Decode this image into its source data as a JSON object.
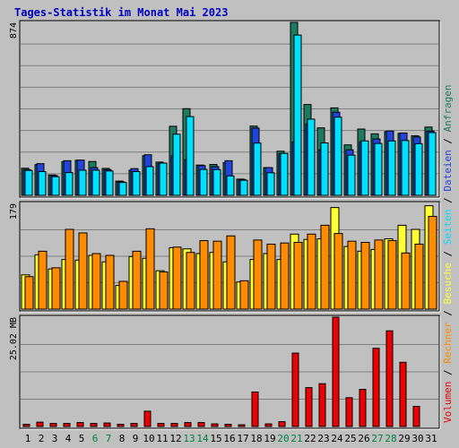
{
  "page": {
    "title": "Tages-Statistik im Monat Mai 2023"
  },
  "colors": {
    "background": "#c0c0c0",
    "title": "#0000c0",
    "anfragen": "#1e7a5e",
    "dateien": "#2244dd",
    "seiten": "#00e0ff",
    "besuche": "#ffff33",
    "rechner": "#ff8c00",
    "volumen": "#ee0000",
    "weekend_day_label": "#008040",
    "weekday_label": "#000000"
  },
  "chart_data": [
    {
      "type": "bar",
      "panel": "top",
      "y_axis_label": "874",
      "ylim": [
        0,
        874
      ],
      "grid": true,
      "categories": [
        "1",
        "2",
        "3",
        "4",
        "5",
        "6",
        "7",
        "8",
        "9",
        "10",
        "11",
        "12",
        "13",
        "14",
        "15",
        "16",
        "17",
        "18",
        "19",
        "20",
        "21",
        "22",
        "23",
        "24",
        "25",
        "26",
        "27",
        "28",
        "29",
        "30",
        "31"
      ],
      "series": [
        {
          "name": "Anfragen",
          "color": "#1e7a5e",
          "values": [
            137,
            155,
            103,
            170,
            177,
            171,
            136,
            72,
            127,
            200,
            168,
            349,
            438,
            153,
            156,
            165,
            82,
            350,
            140,
            223,
            874,
            459,
            341,
            442,
            255,
            335,
            311,
            322,
            313,
            301,
            345
          ]
        },
        {
          "name": "Dateien",
          "color": "#2244dd",
          "values": [
            130,
            160,
            100,
            175,
            178,
            140,
            130,
            68,
            135,
            205,
            160,
            200,
            180,
            150,
            145,
            175,
            80,
            340,
            140,
            210,
            270,
            360,
            230,
            420,
            230,
            270,
            285,
            325,
            315,
            295,
            325
          ]
        },
        {
          "name": "Seiten",
          "color": "#00e0ff",
          "values": [
            126,
            120,
            94,
            115,
            127,
            127,
            123,
            65,
            120,
            145,
            163,
            309,
            398,
            131,
            130,
            98,
            76,
            264,
            114,
            212,
            810,
            385,
            265,
            395,
            203,
            275,
            262,
            275,
            277,
            261,
            317
          ]
        }
      ]
    },
    {
      "type": "bar",
      "panel": "middle",
      "y_axis_label": "179",
      "ylim": [
        0,
        179
      ],
      "grid": true,
      "categories": [
        "1",
        "2",
        "3",
        "4",
        "5",
        "6",
        "7",
        "8",
        "9",
        "10",
        "11",
        "12",
        "13",
        "14",
        "15",
        "16",
        "17",
        "18",
        "19",
        "20",
        "21",
        "22",
        "23",
        "24",
        "25",
        "26",
        "27",
        "28",
        "29",
        "30",
        "31"
      ],
      "series": [
        {
          "name": "Besuche",
          "color": "#ffff33",
          "values": [
            58,
            92,
            68,
            84,
            83,
            91,
            80,
            40,
            89,
            86,
            65,
            104,
            102,
            94,
            96,
            80,
            46,
            84,
            94,
            84,
            127,
            118,
            119,
            172,
            106,
            98,
            101,
            119,
            142,
            135,
            175
          ]
        },
        {
          "name": "Rechner",
          "color": "#ff8c00",
          "values": [
            55,
            98,
            70,
            135,
            129,
            94,
            91,
            47,
            98,
            136,
            63,
            105,
            96,
            116,
            115,
            124,
            48,
            117,
            110,
            112,
            113,
            127,
            142,
            128,
            115,
            113,
            117,
            116,
            95,
            110,
            157
          ]
        }
      ]
    },
    {
      "type": "bar",
      "panel": "bottom",
      "y_axis_label": "25.02 MB",
      "ylim": [
        0,
        25.02
      ],
      "grid": true,
      "categories": [
        "1",
        "2",
        "3",
        "4",
        "5",
        "6",
        "7",
        "8",
        "9",
        "10",
        "11",
        "12",
        "13",
        "14",
        "15",
        "16",
        "17",
        "18",
        "19",
        "20",
        "21",
        "22",
        "23",
        "24",
        "25",
        "26",
        "27",
        "28",
        "29",
        "30",
        "31"
      ],
      "series": [
        {
          "name": "Volumen",
          "color": "#ee0000",
          "values": [
            0.5,
            1.0,
            0.7,
            0.7,
            0.9,
            0.7,
            0.8,
            0.5,
            0.7,
            3.5,
            0.7,
            0.7,
            0.9,
            0.9,
            0.6,
            0.5,
            0.4,
            7.9,
            0.6,
            1.1,
            16.8,
            8.9,
            9.8,
            25.02,
            6.6,
            8.5,
            17.9,
            21.9,
            14.7,
            4.6,
            0
          ]
        }
      ]
    }
  ],
  "x_labels": {
    "days": [
      "1",
      "2",
      "3",
      "4",
      "5",
      "6",
      "7",
      "8",
      "9",
      "10",
      "11",
      "12",
      "13",
      "14",
      "15",
      "16",
      "17",
      "18",
      "19",
      "20",
      "21",
      "22",
      "23",
      "24",
      "25",
      "26",
      "27",
      "28",
      "29",
      "30",
      "31"
    ],
    "weekend_days": [
      "6",
      "7",
      "13",
      "14",
      "20",
      "21",
      "27",
      "28"
    ]
  },
  "legend": {
    "top": [
      {
        "text": "Anfragen",
        "color": "#1e7a5e"
      },
      {
        "text": "Dateien",
        "color": "#2244dd"
      },
      {
        "text": "Seiten",
        "color": "#00e0ff"
      },
      {
        "text": "Besuche",
        "color": "#ffff33"
      },
      {
        "text": "Rechner",
        "color": "#ff8c00"
      },
      {
        "text": "Volumen",
        "color": "#ee0000"
      }
    ],
    "separator": " / "
  }
}
